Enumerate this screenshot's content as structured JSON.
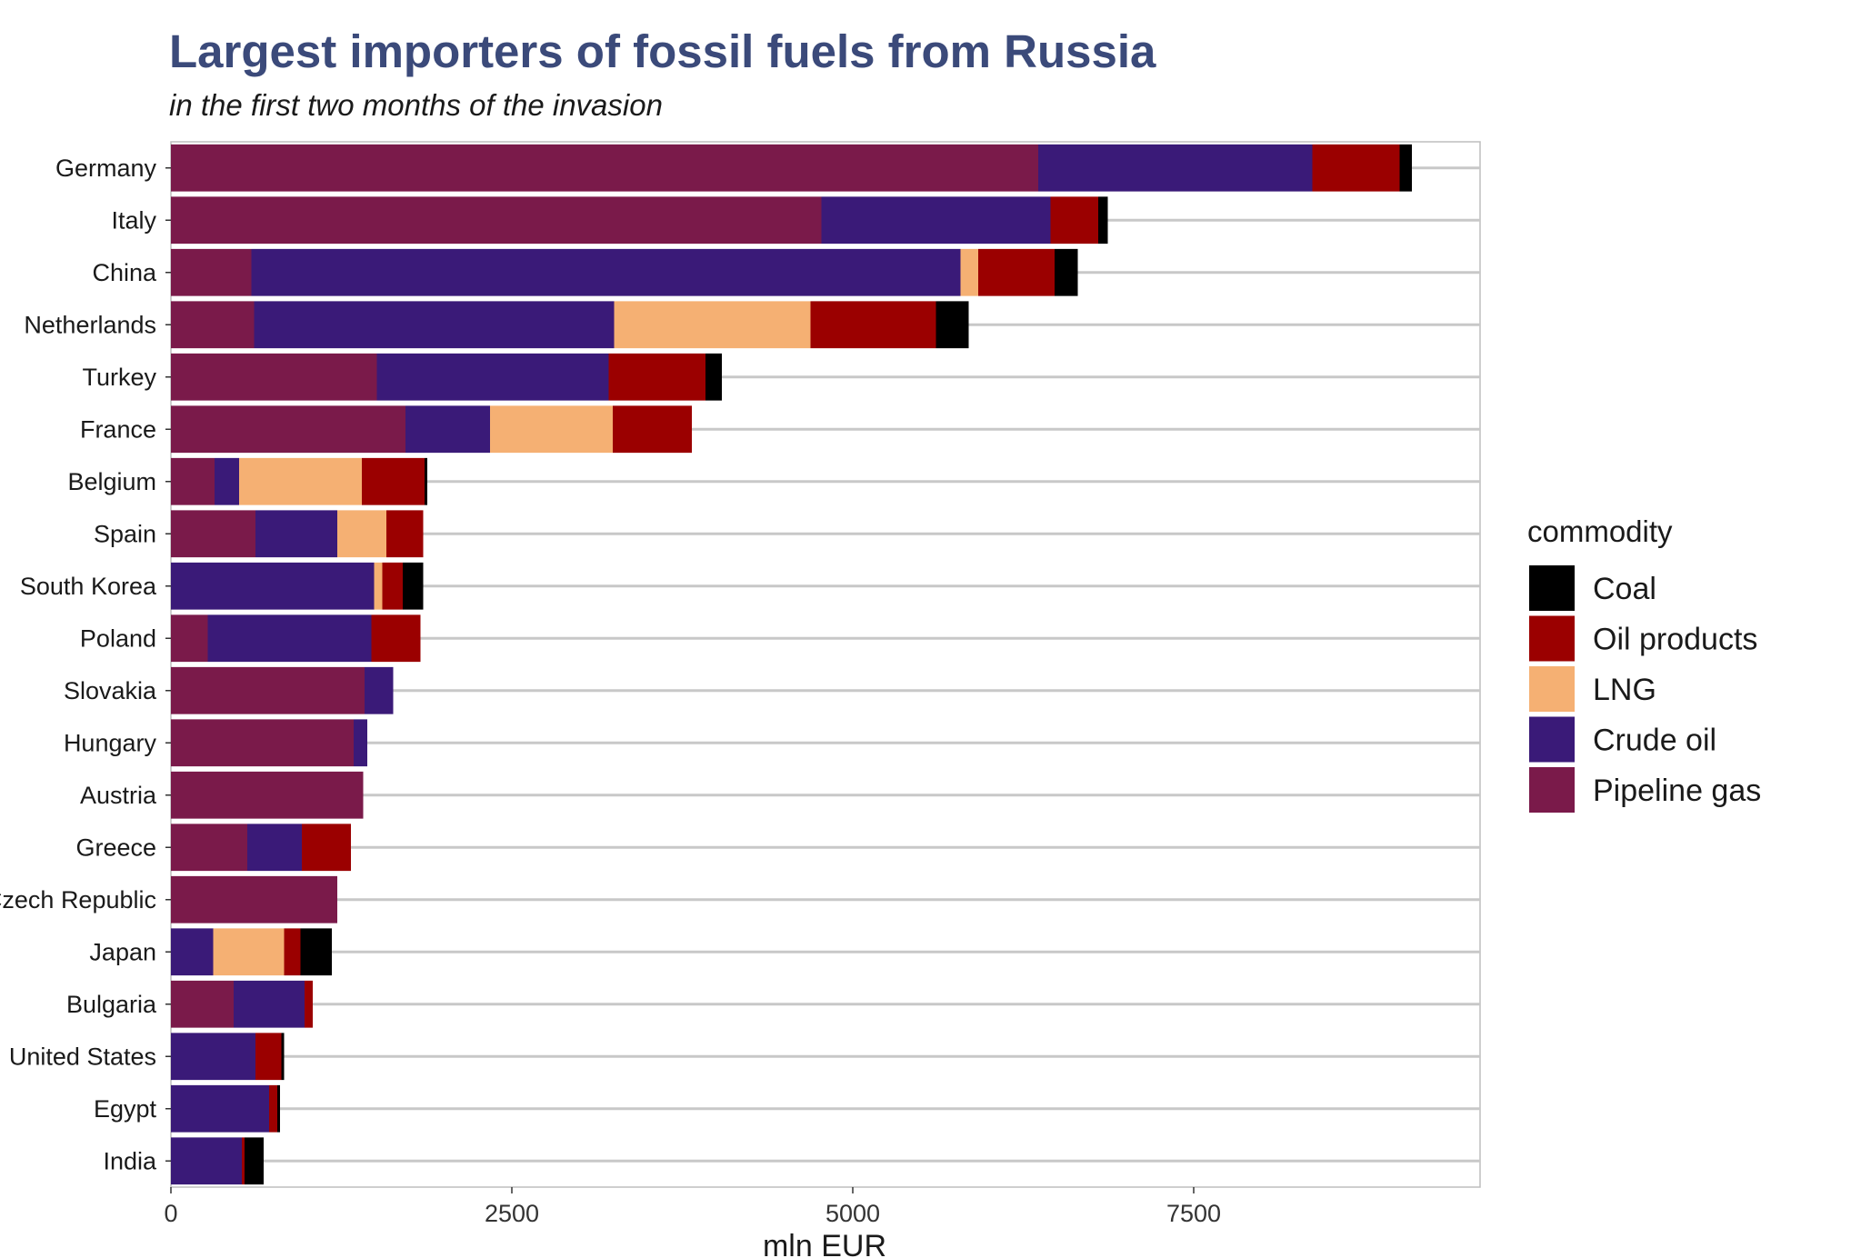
{
  "chart_data": {
    "type": "bar",
    "orientation": "horizontal",
    "stacked": true,
    "title": "Largest importers of fossil fuels from Russia",
    "subtitle": "in the first two months of the invasion",
    "xlabel": "mln EUR",
    "ylabel": "",
    "xlim": [
      0,
      9600
    ],
    "xticks": [
      0,
      2500,
      5000,
      7500
    ],
    "xtick_labels": [
      "0",
      "2500",
      "5000",
      "7500"
    ],
    "grid": "horizontal major lines",
    "legend": {
      "title": "commodity",
      "position": "right"
    },
    "legend_order": [
      "Coal",
      "Oil products",
      "LNG",
      "Crude oil",
      "Pipeline gas"
    ],
    "categories": [
      "Germany",
      "Italy",
      "China",
      "Netherlands",
      "Turkey",
      "France",
      "Belgium",
      "Spain",
      "South Korea",
      "Poland",
      "Slovakia",
      "Hungary",
      "Austria",
      "Greece",
      "Czech Republic",
      "Japan",
      "Bulgaria",
      "United States",
      "Egypt",
      "India"
    ],
    "series": [
      {
        "name": "Pipeline gas",
        "color": "#7a1a4a",
        "values": [
          6360,
          4770,
          590,
          610,
          1510,
          1720,
          320,
          620,
          0,
          270,
          1420,
          1340,
          1410,
          560,
          1220,
          0,
          460,
          0,
          0,
          0
        ]
      },
      {
        "name": "Crude oil",
        "color": "#3a1a78",
        "values": [
          2010,
          1680,
          5200,
          2640,
          1700,
          620,
          180,
          600,
          1490,
          1200,
          210,
          100,
          0,
          400,
          0,
          310,
          520,
          620,
          720,
          520
        ]
      },
      {
        "name": "LNG",
        "color": "#f5b073",
        "values": [
          0,
          0,
          130,
          1440,
          0,
          900,
          900,
          360,
          60,
          0,
          0,
          0,
          0,
          0,
          0,
          520,
          0,
          0,
          0,
          0
        ]
      },
      {
        "name": "Oil products",
        "color": "#9b0000",
        "values": [
          640,
          350,
          560,
          920,
          710,
          580,
          460,
          270,
          150,
          360,
          0,
          0,
          0,
          360,
          0,
          120,
          60,
          190,
          60,
          20
        ]
      },
      {
        "name": "Coal",
        "color": "#000000",
        "values": [
          90,
          70,
          170,
          240,
          120,
          0,
          20,
          0,
          150,
          0,
          0,
          0,
          0,
          0,
          0,
          230,
          0,
          20,
          20,
          140
        ]
      }
    ]
  }
}
